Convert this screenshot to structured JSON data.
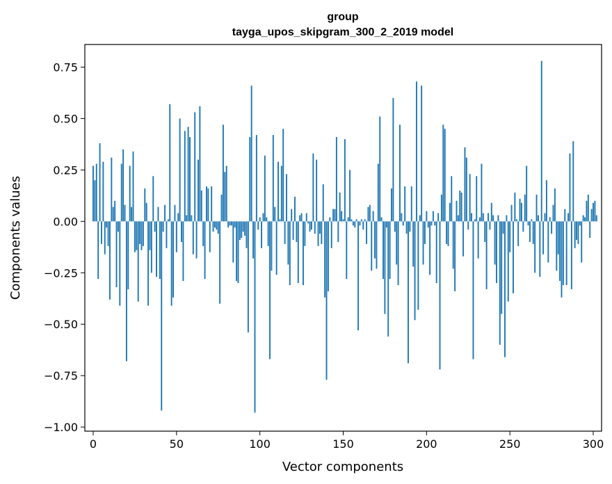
{
  "chart_data": {
    "type": "bar",
    "title": "group",
    "subtitle": "tayga_upos_skipgram_300_2_2019 model",
    "xlabel": "Vector components",
    "ylabel": "Components values",
    "xlim": [
      -5,
      305
    ],
    "ylim": [
      -1.02,
      0.86
    ],
    "x_ticks": [
      0,
      50,
      100,
      150,
      200,
      250,
      300
    ],
    "x_tick_labels": [
      "0",
      "50",
      "100",
      "150",
      "200",
      "250",
      "300"
    ],
    "y_ticks": [
      -1.0,
      -0.75,
      -0.5,
      -0.25,
      0.0,
      0.25,
      0.5,
      0.75
    ],
    "y_tick_labels": [
      "−1.00",
      "−0.75",
      "−0.50",
      "−0.25",
      "0.00",
      "0.25",
      "0.50",
      "0.75"
    ],
    "bar_color": "#1f77b4",
    "grid": false,
    "values": [
      0.27,
      0.2,
      0.28,
      -0.28,
      0.38,
      -0.11,
      0.29,
      -0.16,
      -0.03,
      -0.12,
      -0.38,
      0.31,
      0.07,
      0.1,
      -0.32,
      -0.05,
      -0.41,
      0.28,
      0.35,
      0.08,
      -0.68,
      -0.33,
      0.27,
      0.07,
      0.34,
      -0.15,
      -0.14,
      -0.39,
      -0.11,
      -0.14,
      -0.12,
      0.16,
      0.09,
      -0.41,
      -0.14,
      -0.25,
      0.22,
      -0.05,
      -0.27,
      0.07,
      -0.28,
      -0.92,
      -0.05,
      0.08,
      -0.13,
      0.01,
      0.57,
      -0.41,
      -0.37,
      0.08,
      -0.15,
      0.04,
      0.5,
      -0.1,
      -0.29,
      0.44,
      0.03,
      0.46,
      0.41,
      0.03,
      -0.16,
      0.53,
      -0.18,
      0.3,
      0.56,
      0.15,
      -0.12,
      -0.28,
      0.17,
      0.16,
      -0.15,
      0.17,
      -0.05,
      -0.03,
      -0.04,
      -0.06,
      -0.4,
      0.13,
      0.47,
      0.24,
      0.27,
      -0.03,
      -0.02,
      -0.02,
      -0.2,
      -0.03,
      -0.29,
      -0.3,
      -0.09,
      -0.08,
      -0.05,
      -0.07,
      -0.13,
      -0.54,
      0.41,
      0.66,
      -0.18,
      -0.93,
      0.42,
      -0.04,
      0.02,
      -0.13,
      0.04,
      0.32,
      0.02,
      -0.12,
      -0.67,
      -0.24,
      0.42,
      0.07,
      -0.26,
      0.29,
      0.01,
      0.27,
      0.45,
      -0.11,
      0.23,
      -0.21,
      -0.31,
      0.06,
      -0.09,
      0.12,
      -0.1,
      -0.3,
      0.03,
      0.04,
      -0.31,
      -0.12,
      0.04,
      -0.01,
      -0.05,
      -0.04,
      0.33,
      -0.06,
      0.3,
      -0.12,
      -0.06,
      -0.11,
      0.18,
      -0.37,
      -0.77,
      -0.34,
      0.02,
      -0.13,
      0.06,
      0.06,
      0.41,
      -0.1,
      0.14,
      0.05,
      0.01,
      0.4,
      -0.28,
      0.02,
      0.25,
      0.01,
      -0.02,
      -0.03,
      0.01,
      -0.53,
      -0.02,
      0.01,
      -0.04,
      0.01,
      -0.11,
      0.07,
      0.08,
      -0.24,
      0.05,
      -0.18,
      -0.23,
      0.28,
      0.51,
      0.02,
      -0.28,
      -0.45,
      -0.03,
      -0.56,
      -0.28,
      0.16,
      0.6,
      -0.05,
      -0.21,
      -0.31,
      0.47,
      0.04,
      -0.02,
      0.17,
      -0.06,
      -0.69,
      -0.05,
      0.17,
      -0.22,
      -0.48,
      0.68,
      -0.43,
      0.03,
      0.66,
      -0.21,
      -0.11,
      0.05,
      -0.03,
      -0.26,
      -0.02,
      0.05,
      -0.02,
      -0.3,
      0.04,
      -0.72,
      0.13,
      0.47,
      0.45,
      -0.11,
      -0.12,
      0.09,
      0.22,
      -0.23,
      -0.34,
      0.1,
      0.03,
      0.15,
      0.14,
      -0.17,
      0.36,
      0.31,
      -0.04,
      0.23,
      0.04,
      -0.67,
      0.01,
      0.22,
      -0.18,
      0.02,
      0.28,
      0.04,
      -0.1,
      -0.33,
      0.04,
      -0.04,
      0.09,
      0.03,
      -0.21,
      -0.3,
      0.03,
      -0.6,
      -0.45,
      -0.06,
      -0.66,
      0.03,
      -0.39,
      -0.15,
      0.08,
      -0.35,
      0.14,
      0.01,
      -0.12,
      0.11,
      0.09,
      -0.05,
      0.13,
      0.27,
      -0.02,
      -0.1,
      0.01,
      -0.11,
      -0.25,
      0.13,
      0.03,
      -0.27,
      0.78,
      -0.16,
      0.04,
      0.2,
      -0.2,
      0.02,
      -0.06,
      0.08,
      0.16,
      -0.24,
      -0.16,
      -0.29,
      -0.37,
      -0.31,
      0.06,
      -0.31,
      0.04,
      0.33,
      -0.33,
      0.39,
      -0.13,
      -0.09,
      -0.11,
      -0.02,
      -0.2,
      0.03,
      0.02,
      0.1,
      0.13,
      -0.08,
      0.06,
      0.09,
      0.1,
      0.03
    ]
  }
}
